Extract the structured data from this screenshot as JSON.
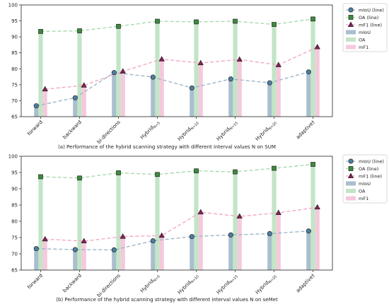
{
  "chart_data": [
    {
      "type": "bar",
      "caption": "(a) Performance of the hybrid scanning strategy with different interval values N on SUM",
      "categories": [
        "forward",
        "backward",
        "bi-directions",
        "Hybrid_N=5",
        "Hybrid_N=10",
        "Hybrid_N=15",
        "Hybrid_N=20",
        "adaptive†"
      ],
      "ylim": [
        65,
        100
      ],
      "yticks": [
        65,
        70,
        75,
        80,
        85,
        90,
        95,
        100
      ],
      "grid": false,
      "legend_position": "outside-right",
      "series": [
        {
          "name": "mIoU",
          "kind": "bar",
          "color": "#a9bfce",
          "values": [
            68.4,
            70.9,
            78.8,
            77.4,
            74.0,
            76.8,
            75.6,
            79.0
          ]
        },
        {
          "name": "OA",
          "kind": "bar",
          "color": "#c3e5c7",
          "values": [
            91.7,
            91.9,
            93.3,
            94.9,
            94.7,
            94.9,
            93.9,
            95.6
          ]
        },
        {
          "name": "mF1",
          "kind": "bar",
          "color": "#f5c9dc",
          "values": [
            73.6,
            74.8,
            79.2,
            83.0,
            81.8,
            82.9,
            81.2,
            86.8
          ]
        },
        {
          "name": "mIoU (line)",
          "kind": "line",
          "marker": "circle",
          "color": "#9db6c8",
          "marker_color": "#4f7fa3",
          "values": [
            68.4,
            70.9,
            78.8,
            77.4,
            74.0,
            76.8,
            75.6,
            79.0
          ]
        },
        {
          "name": "OA (line)",
          "kind": "line",
          "marker": "square",
          "color": "#a8d9ae",
          "marker_color": "#3c8c3c",
          "values": [
            91.7,
            91.9,
            93.3,
            94.9,
            94.7,
            94.9,
            93.9,
            95.6
          ]
        },
        {
          "name": "mF1 (line)",
          "kind": "line",
          "marker": "triangle",
          "color": "#f2a9c6",
          "marker_color": "#8b1e5a",
          "values": [
            73.6,
            74.8,
            79.2,
            83.0,
            81.8,
            82.9,
            81.2,
            86.8
          ]
        }
      ]
    },
    {
      "type": "bar",
      "caption": "(b) Performance of the hybrid scanning strategy with different interval values N on seMet",
      "categories": [
        "forward",
        "backward",
        "bi-directions",
        "Hybrid_N=5",
        "Hybrid_N=10",
        "Hybrid_N=15",
        "Hybrid_N=20",
        "adaptive†"
      ],
      "ylim": [
        65,
        100
      ],
      "yticks": [
        65,
        70,
        75,
        80,
        85,
        90,
        95,
        100
      ],
      "grid": false,
      "legend_position": "outside-right",
      "series": [
        {
          "name": "mIoU",
          "kind": "bar",
          "color": "#a9bfce",
          "values": [
            71.6,
            71.3,
            71.2,
            74.0,
            75.3,
            75.8,
            76.2,
            77.0
          ]
        },
        {
          "name": "OA",
          "kind": "bar",
          "color": "#c3e5c7",
          "values": [
            93.7,
            93.3,
            94.9,
            94.4,
            95.5,
            95.2,
            96.3,
            97.5
          ]
        },
        {
          "name": "mF1",
          "kind": "bar",
          "color": "#f5c9dc",
          "values": [
            74.5,
            73.9,
            75.3,
            75.6,
            82.8,
            81.5,
            82.6,
            84.3
          ]
        },
        {
          "name": "mIoU (line)",
          "kind": "line",
          "marker": "circle",
          "color": "#9db6c8",
          "marker_color": "#4f7fa3",
          "values": [
            71.6,
            71.3,
            71.2,
            74.0,
            75.3,
            75.8,
            76.2,
            77.0
          ]
        },
        {
          "name": "OA (line)",
          "kind": "line",
          "marker": "square",
          "color": "#a8d9ae",
          "marker_color": "#3c8c3c",
          "values": [
            93.7,
            93.3,
            94.9,
            94.4,
            95.5,
            95.2,
            96.3,
            97.5
          ]
        },
        {
          "name": "mF1 (line)",
          "kind": "line",
          "marker": "triangle",
          "color": "#f2a9c6",
          "marker_color": "#8b1e5a",
          "values": [
            74.5,
            73.9,
            75.3,
            75.6,
            82.8,
            81.5,
            82.6,
            84.3
          ]
        }
      ]
    }
  ],
  "legend_items": [
    {
      "label": "mIoU (line)",
      "kind": "line",
      "marker": "circle"
    },
    {
      "label": "OA (line)",
      "kind": "line",
      "marker": "square"
    },
    {
      "label": "mF1 (line)",
      "kind": "line",
      "marker": "triangle"
    },
    {
      "label": "mIoU",
      "kind": "bar"
    },
    {
      "label": "OA",
      "kind": "bar"
    },
    {
      "label": "mF1",
      "kind": "bar"
    }
  ],
  "colors": {
    "miou_bar": "#a9bfce",
    "oa_bar": "#c3e5c7",
    "mf1_bar": "#f5c9dc",
    "miou_line": "#9db6c8",
    "oa_line": "#a8d9ae",
    "mf1_line": "#f2a9c6",
    "miou_marker": "#4f7fa3",
    "oa_marker": "#3c8c3c",
    "mf1_marker": "#8b1e5a"
  }
}
